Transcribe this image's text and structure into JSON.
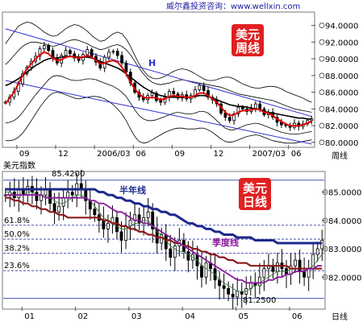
{
  "header": {
    "source_text": "威尔鑫投资咨询：www.wellxin.com"
  },
  "colors": {
    "badge": "#e02020",
    "candle": "#000000",
    "ma_red": "#e00000",
    "ma_black": "#000000",
    "channel_blue": "#3030d0",
    "half_year": "#1c2a8c",
    "quarter": "#8a1a9c",
    "ma_brown": "#8b1a1a",
    "fib_line": "#2a3aa8",
    "yaxis_text": "#000000"
  },
  "chart_data": [
    {
      "type": "candlestick",
      "badge": "美元周线",
      "badge_lines": [
        "美元",
        "周线"
      ],
      "y_tick_labels": [
        "94.0000",
        "92.0000",
        "90.0000",
        "88.0000",
        "86.0000",
        "84.0000",
        "82.0000",
        "80.0000"
      ],
      "y_ticks": [
        94,
        92,
        90,
        88,
        86,
        84,
        82,
        80
      ],
      "ylim": [
        79.5,
        95.5
      ],
      "x_tick_labels": [
        "09",
        "12",
        "2006/03",
        "06",
        "09",
        "12",
        "2007/03",
        "06"
      ],
      "x_axis_caption": "周线",
      "channel_label": "H",
      "series": [
        {
          "name": "price",
          "kind": "candles",
          "values": [
            84.8,
            85.4,
            86.1,
            87.0,
            88.2,
            89.0,
            89.7,
            90.3,
            91.2,
            91.6,
            91.0,
            90.1,
            89.5,
            90.4,
            91.0,
            90.6,
            90.1,
            89.8,
            90.5,
            91.1,
            90.3,
            89.6,
            88.9,
            90.2,
            90.8,
            90.9,
            90.4,
            89.5,
            88.4,
            87.1,
            86.0,
            85.4,
            85.1,
            85.6,
            85.9,
            85.0,
            84.8,
            85.4,
            86.1,
            85.8,
            85.3,
            85.7,
            85.2,
            85.6,
            86.3,
            86.8,
            86.2,
            85.4,
            85.1,
            84.6,
            83.5,
            83.0,
            82.6,
            83.4,
            84.2,
            84.0,
            83.7,
            84.1,
            84.6,
            84.0,
            83.3,
            83.6,
            83.0,
            82.4,
            82.1,
            82.0,
            81.8,
            82.3,
            81.9,
            82.2,
            82.6,
            82.8
          ]
        },
        {
          "name": "ma_red",
          "kind": "line",
          "values": [
            84.6,
            85.3,
            86.0,
            87.0,
            88.0,
            88.8,
            89.4,
            90.0,
            90.5,
            90.8,
            90.6,
            90.1,
            89.8,
            89.9,
            90.2,
            90.3,
            90.2,
            90.1,
            90.2,
            90.4,
            90.2,
            89.8,
            89.4,
            89.5,
            89.7,
            89.8,
            89.6,
            89.0,
            88.2,
            87.2,
            86.4,
            85.8,
            85.4,
            85.3,
            85.4,
            85.3,
            85.1,
            85.2,
            85.5,
            85.6,
            85.5,
            85.5,
            85.4,
            85.4,
            85.6,
            85.9,
            85.9,
            85.6,
            85.2,
            84.8,
            84.2,
            83.6,
            83.2,
            83.3,
            83.6,
            83.8,
            83.8,
            83.9,
            84.0,
            83.9,
            83.6,
            83.5,
            83.2,
            82.8,
            82.5,
            82.2,
            82.0,
            82.0,
            82.0,
            82.1,
            82.3,
            82.5
          ]
        },
        {
          "name": "ma_black",
          "kind": "line",
          "values": [
            86.8,
            87.0,
            87.3,
            87.6,
            88.0,
            88.4,
            88.8,
            89.2,
            89.5,
            89.8,
            90.0,
            90.1,
            90.1,
            90.2,
            90.3,
            90.3,
            90.3,
            90.2,
            90.2,
            90.2,
            90.1,
            89.9,
            89.7,
            89.5,
            89.3,
            89.1,
            88.9,
            88.6,
            88.2,
            87.8,
            87.4,
            87.0,
            86.6,
            86.3,
            86.0,
            85.8,
            85.6,
            85.5,
            85.4,
            85.4,
            85.4,
            85.4,
            85.4,
            85.4,
            85.5,
            85.6,
            85.6,
            85.5,
            85.3,
            85.1,
            84.9,
            84.7,
            84.5,
            84.4,
            84.3,
            84.3,
            84.2,
            84.1,
            84.0,
            83.9,
            83.7,
            83.6,
            83.5,
            83.4,
            83.3,
            83.2,
            83.1,
            83.0,
            82.9,
            82.9,
            82.8,
            82.8
          ]
        },
        {
          "name": "band_upper2",
          "kind": "line",
          "values": [
            91.8,
            92.5,
            93.2,
            93.9,
            94.2,
            94.4,
            94.3,
            94.0,
            93.6,
            93.2,
            92.9,
            92.7,
            92.8,
            93.2,
            93.6,
            93.9,
            94.1,
            94.0,
            93.7,
            93.3,
            92.8,
            92.4,
            92.1,
            92.2,
            92.6,
            93.0,
            93.2,
            93.0,
            92.4,
            91.5,
            90.4,
            89.4,
            88.6,
            88.0,
            87.7,
            87.6,
            87.7,
            87.9,
            88.2,
            88.5,
            88.7,
            88.8,
            88.7,
            88.5,
            88.2,
            87.9,
            87.6,
            87.4,
            87.4,
            87.5,
            87.7,
            87.8,
            87.8,
            87.6,
            87.3,
            87.0,
            86.8,
            86.6,
            86.5,
            86.5,
            86.6,
            86.7,
            86.7,
            86.6,
            86.4,
            86.1,
            85.9,
            85.7,
            85.5,
            85.3,
            85.0,
            84.8
          ]
        },
        {
          "name": "band_upper1",
          "kind": "line",
          "values": [
            89.3,
            89.8,
            90.4,
            91.0,
            91.5,
            91.8,
            92.0,
            92.0,
            91.9,
            91.8,
            91.6,
            91.5,
            91.6,
            91.8,
            92.0,
            92.2,
            92.3,
            92.2,
            92.0,
            91.8,
            91.5,
            91.3,
            91.1,
            91.2,
            91.4,
            91.6,
            91.7,
            91.5,
            91.1,
            90.5,
            89.7,
            88.9,
            88.2,
            87.6,
            87.2,
            87.0,
            86.9,
            87.0,
            87.1,
            87.3,
            87.4,
            87.5,
            87.4,
            87.3,
            87.2,
            87.1,
            87.0,
            86.9,
            86.8,
            86.7,
            86.6,
            86.4,
            86.2,
            86.0,
            85.8,
            85.7,
            85.6,
            85.5,
            85.4,
            85.3,
            85.2,
            85.1,
            85.0,
            84.8,
            84.6,
            84.4,
            84.2,
            84.0,
            83.9,
            83.8,
            83.7,
            83.6
          ]
        },
        {
          "name": "band_lower1",
          "kind": "line",
          "values": [
            82.3,
            82.4,
            82.6,
            83.0,
            83.6,
            84.3,
            85.0,
            85.7,
            86.3,
            86.9,
            87.5,
            87.9,
            88.0,
            87.9,
            87.7,
            87.5,
            87.4,
            87.4,
            87.5,
            87.6,
            87.6,
            87.5,
            87.3,
            87.1,
            86.9,
            86.7,
            86.4,
            86.0,
            85.5,
            84.7,
            83.9,
            83.2,
            82.8,
            82.6,
            82.6,
            82.7,
            82.9,
            83.1,
            83.3,
            83.5,
            83.6,
            83.5,
            83.4,
            83.4,
            83.5,
            83.7,
            83.7,
            83.5,
            83.1,
            82.6,
            82.1,
            81.7,
            81.5,
            81.5,
            81.7,
            81.9,
            82.1,
            82.2,
            82.3,
            82.2,
            82.0,
            81.8,
            81.6,
            81.4,
            81.2,
            81.1,
            81.0,
            81.0,
            81.0,
            81.1,
            81.2,
            81.3
          ]
        },
        {
          "name": "band_lower2",
          "kind": "line",
          "values": [
            80.2,
            80.2,
            80.3,
            80.6,
            81.1,
            81.8,
            82.6,
            83.4,
            84.2,
            84.9,
            85.5,
            85.9,
            86.0,
            85.9,
            85.7,
            85.5,
            85.3,
            85.2,
            85.3,
            85.4,
            85.5,
            85.5,
            85.4,
            85.2,
            84.9,
            84.5,
            84.0,
            83.4,
            82.6,
            81.6,
            80.7,
            80.1,
            79.9,
            80.0,
            80.3,
            80.6,
            80.9,
            81.2,
            81.4,
            81.6,
            81.7,
            81.7,
            81.6,
            81.6,
            81.6,
            81.7,
            81.7,
            81.5,
            81.2,
            80.8,
            80.4,
            80.1,
            80.0,
            80.1,
            80.3,
            80.5,
            80.7,
            80.8,
            80.9,
            80.8,
            80.6,
            80.4,
            80.2,
            80.1,
            80.0,
            79.9,
            79.9,
            79.9,
            80.0,
            80.1,
            80.2,
            80.3
          ]
        },
        {
          "name": "channel_upper",
          "kind": "trendline",
          "from": [
            0,
            93.6
          ],
          "to": [
            71,
            83.1
          ]
        },
        {
          "name": "channel_lower",
          "kind": "trendline",
          "from": [
            0,
            87.4
          ],
          "to": [
            71,
            79.8
          ]
        }
      ]
    },
    {
      "type": "candlestick",
      "title": "美元指数",
      "badge": "美元日线",
      "badge_lines": [
        "美元",
        "日线"
      ],
      "high_annotation": "85.4200",
      "low_annotation": "81.2500",
      "y_tick_labels": [
        "85.0000",
        "84.0000",
        "83.0000",
        "82.0000"
      ],
      "y_ticks": [
        85,
        84,
        83,
        82
      ],
      "ylim": [
        80.9,
        85.7
      ],
      "x_tick_labels": [
        "01",
        "02",
        "03",
        "04",
        "05",
        "06"
      ],
      "x_axis_caption": "日线",
      "fib_levels": [
        {
          "label": "61.8%",
          "value": 83.83
        },
        {
          "label": "50.0%",
          "value": 83.34
        },
        {
          "label": "38.2%",
          "value": 82.84
        },
        {
          "label": "23.6%",
          "value": 82.23
        }
      ],
      "fib_top": 85.42,
      "fib_bottom": 81.25,
      "series": [
        {
          "name": "price",
          "kind": "candles",
          "values": [
            84.9,
            85.0,
            84.8,
            85.1,
            84.9,
            85.2,
            85.0,
            84.7,
            84.9,
            85.1,
            84.6,
            84.3,
            84.5,
            84.8,
            85.0,
            84.9,
            85.3,
            85.1,
            84.7,
            84.4,
            84.2,
            84.0,
            83.7,
            83.9,
            84.1,
            83.6,
            83.3,
            83.8,
            84.0,
            84.2,
            83.9,
            84.1,
            84.3,
            83.7,
            83.2,
            83.5,
            83.0,
            82.7,
            83.1,
            83.3,
            82.9,
            82.6,
            82.8,
            82.4,
            82.0,
            82.5,
            82.3,
            81.9,
            81.7,
            81.6,
            81.4,
            81.3,
            81.5,
            81.4,
            81.6,
            81.8,
            81.7,
            82.0,
            82.3,
            82.4,
            82.2,
            82.5,
            82.3,
            82.1,
            82.4,
            82.6,
            82.2,
            82.0,
            82.3,
            82.8,
            83.0,
            83.3
          ]
        },
        {
          "name": "half_year_ma",
          "kind": "line",
          "values": [
            85.1,
            85.1,
            85.1,
            85.1,
            85.1,
            85.1,
            85.1,
            85.1,
            85.1,
            85.1,
            85.1,
            85.1,
            85.1,
            85.1,
            85.1,
            85.1,
            85.1,
            85.1,
            85.1,
            85.1,
            85.1,
            85.0,
            85.0,
            84.9,
            84.9,
            84.8,
            84.8,
            84.7,
            84.7,
            84.6,
            84.6,
            84.5,
            84.5,
            84.4,
            84.4,
            84.3,
            84.3,
            84.2,
            84.2,
            84.1,
            84.0,
            83.9,
            83.9,
            83.8,
            83.8,
            83.7,
            83.7,
            83.6,
            83.6,
            83.5,
            83.5,
            83.5,
            83.4,
            83.4,
            83.4,
            83.4,
            83.3,
            83.3,
            83.3,
            83.3,
            83.3,
            83.2,
            83.2,
            83.2,
            83.2,
            83.2,
            83.2,
            83.2,
            83.2,
            83.2,
            83.2,
            83.2
          ]
        },
        {
          "name": "ma_brown",
          "kind": "line",
          "values": [
            84.8,
            84.8,
            84.7,
            84.7,
            84.6,
            84.6,
            84.5,
            84.5,
            84.4,
            84.4,
            84.3,
            84.3,
            84.2,
            84.2,
            84.1,
            84.1,
            84.1,
            84.1,
            84.1,
            84.1,
            84.1,
            84.1,
            84.0,
            84.0,
            83.9,
            83.9,
            83.8,
            83.8,
            83.7,
            83.7,
            83.6,
            83.6,
            83.5,
            83.5,
            83.4,
            83.4,
            83.3,
            83.3,
            83.2,
            83.2,
            83.1,
            83.1,
            83.0,
            83.0,
            82.9,
            82.9,
            82.8,
            82.8,
            82.7,
            82.7,
            82.6,
            82.6,
            82.5,
            82.5,
            82.5,
            82.4,
            82.4,
            82.4,
            82.4,
            82.4,
            82.4,
            82.4,
            82.4,
            82.4,
            82.3,
            82.3,
            82.3,
            82.3,
            82.3,
            82.3,
            82.3,
            82.3
          ]
        },
        {
          "name": "quarter_ma",
          "kind": "line",
          "values": [
            84.9,
            84.9,
            84.9,
            84.9,
            84.9,
            84.9,
            84.9,
            84.9,
            84.9,
            84.8,
            84.8,
            84.8,
            84.8,
            84.8,
            84.8,
            84.8,
            84.8,
            84.8,
            84.8,
            84.7,
            84.7,
            84.6,
            84.6,
            84.5,
            84.4,
            84.3,
            84.3,
            84.2,
            84.1,
            84.0,
            84.0,
            83.9,
            83.9,
            83.8,
            83.7,
            83.6,
            83.5,
            83.4,
            83.3,
            83.2,
            83.1,
            83.0,
            82.9,
            82.8,
            82.7,
            82.6,
            82.5,
            82.4,
            82.3,
            82.2,
            82.1,
            82.0,
            81.9,
            81.9,
            81.8,
            81.8,
            81.8,
            81.8,
            81.8,
            81.9,
            81.9,
            82.0,
            82.0,
            82.1,
            82.1,
            82.2,
            82.2,
            82.2,
            82.3,
            82.3,
            82.4,
            82.4
          ]
        },
        {
          "name": "ma_green",
          "kind": "line",
          "values": [
            85.0,
            85.0,
            84.9,
            84.9,
            84.9,
            85.0,
            85.0,
            84.9,
            84.9,
            84.9,
            84.8,
            84.7,
            84.6,
            84.6,
            84.7,
            84.8,
            84.9,
            84.9,
            84.8,
            84.7,
            84.5,
            84.3,
            84.1,
            84.0,
            83.9,
            83.8,
            83.7,
            83.7,
            83.8,
            83.9,
            83.9,
            84.0,
            84.0,
            83.8,
            83.6,
            83.5,
            83.3,
            83.1,
            83.0,
            82.9,
            82.9,
            82.8,
            82.7,
            82.6,
            82.4,
            82.3,
            82.2,
            82.1,
            81.9,
            81.8,
            81.7,
            81.6,
            81.5,
            81.5,
            81.5,
            81.6,
            81.7,
            81.8,
            81.9,
            82.0,
            82.1,
            82.2,
            82.2,
            82.2,
            82.3,
            82.3,
            82.3,
            82.3,
            82.3,
            82.4,
            82.6,
            82.8
          ]
        }
      ],
      "labels": {
        "half_year": "半年线",
        "quarter": "季度线"
      }
    }
  ]
}
